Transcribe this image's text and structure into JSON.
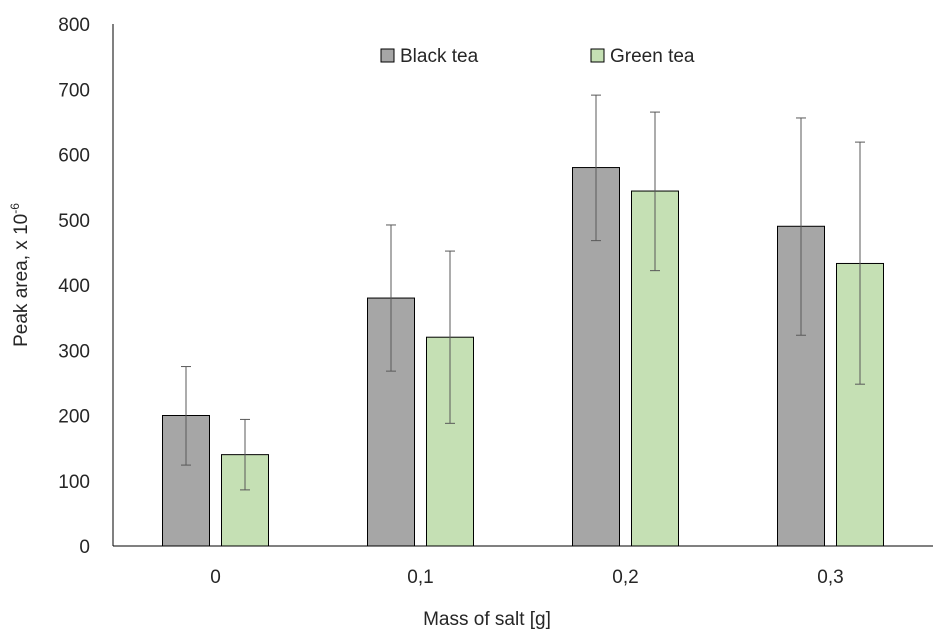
{
  "chart_data": {
    "type": "bar",
    "categories": [
      "0",
      "0,1",
      "0,2",
      "0,3"
    ],
    "series": [
      {
        "name": "Black tea",
        "color": "#a6a6a6",
        "values": [
          200,
          380,
          580,
          490
        ],
        "error_high": [
          275,
          492,
          691,
          656
        ],
        "error_low": [
          124,
          268,
          468,
          323
        ]
      },
      {
        "name": "Green tea",
        "color": "#c5e0b4",
        "values": [
          140,
          320,
          544,
          433
        ],
        "error_high": [
          194,
          452,
          665,
          619
        ],
        "error_low": [
          86,
          188,
          422,
          248
        ]
      }
    ],
    "xlabel": "Mass of salt [g]",
    "ylabel": "Peak area, x 10",
    "ylabel_superscript": "-6",
    "ylim": [
      0,
      800
    ],
    "yticks": [
      0,
      100,
      200,
      300,
      400,
      500,
      600,
      700,
      800
    ],
    "legend_position": "top-center",
    "grid": false
  }
}
